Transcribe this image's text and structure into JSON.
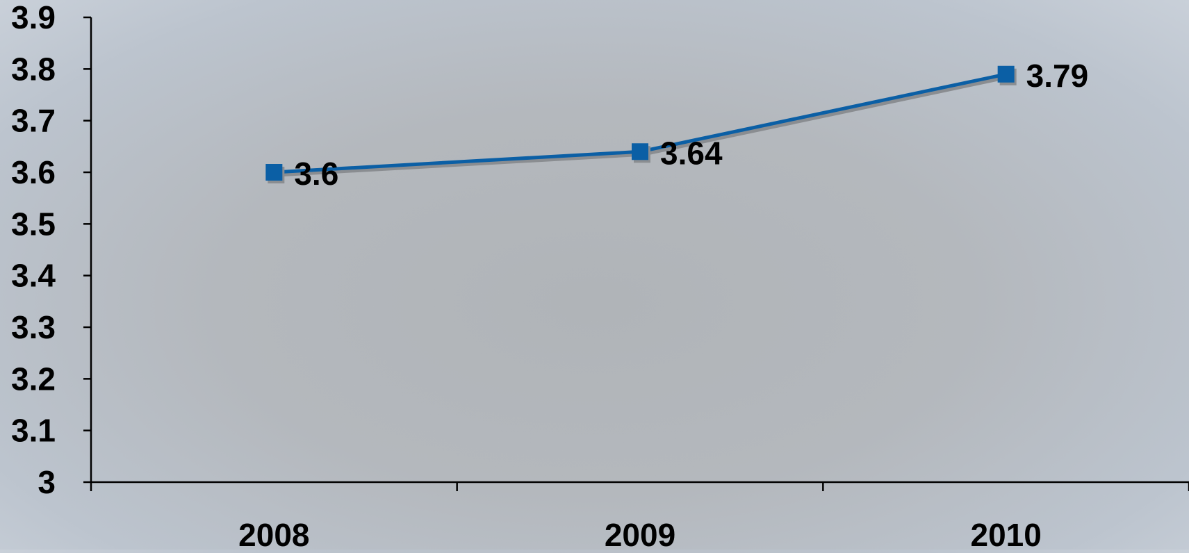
{
  "chart_data": {
    "type": "line",
    "title": "",
    "xlabel": "",
    "ylabel": "",
    "categories": [
      "2008",
      "2009",
      "2010"
    ],
    "series": [
      {
        "values": [
          3.6,
          3.64,
          3.79
        ],
        "data_labels": [
          "3.6",
          "3.64",
          "3.79"
        ],
        "color": "#0b5fa5",
        "shadow_color": "#8a8d91",
        "marker": "square"
      }
    ],
    "ylim": [
      3,
      3.9
    ],
    "y_ticks": [
      3,
      3.1,
      3.2,
      3.3,
      3.4,
      3.5,
      3.6,
      3.7,
      3.8,
      3.9
    ],
    "y_tick_labels": [
      "3",
      "3.1",
      "3.2",
      "3.3",
      "3.4",
      "3.5",
      "3.6",
      "3.7",
      "3.8",
      "3.9"
    ],
    "grid": false,
    "legend": "none"
  }
}
